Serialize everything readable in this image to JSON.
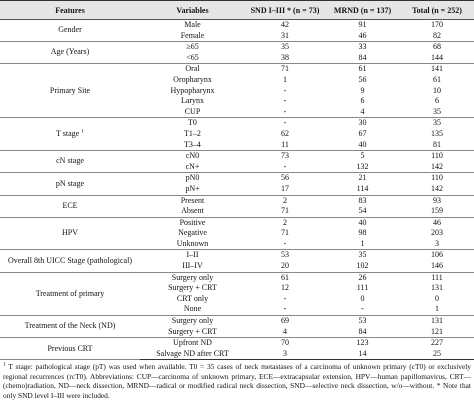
{
  "header": [
    "Features",
    "Variables",
    "SND I–III * (n = 73)",
    "MRND (n = 137)",
    "Total (n = 252)"
  ],
  "groups": [
    {
      "feature": "Gender",
      "rows": [
        [
          "Male",
          "42",
          "91",
          "170"
        ],
        [
          "Female",
          "31",
          "46",
          "82"
        ]
      ]
    },
    {
      "feature": "Age (Years)",
      "rows": [
        [
          "≥65",
          "35",
          "33",
          "68"
        ],
        [
          "<65",
          "38",
          "84",
          "144"
        ]
      ]
    },
    {
      "feature": "Primary Site",
      "rows": [
        [
          "Oral",
          "71",
          "61",
          "141"
        ],
        [
          "Oropharynx",
          "1",
          "56",
          "61"
        ],
        [
          "Hypopharynx",
          "-",
          "9",
          "10"
        ],
        [
          "Larynx",
          "-",
          "6",
          "6"
        ],
        [
          "CUP",
          "-",
          "4",
          "35"
        ]
      ]
    },
    {
      "feature": "T stage",
      "sup": "1",
      "rows": [
        [
          "T0",
          "-",
          "30",
          "35"
        ],
        [
          "T1–2",
          "62",
          "67",
          "135"
        ],
        [
          "T3–4",
          "11",
          "40",
          "81"
        ]
      ]
    },
    {
      "feature": "cN stage",
      "rows": [
        [
          "cN0",
          "73",
          "5",
          "110"
        ],
        [
          "cN+",
          "-",
          "132",
          "142"
        ]
      ]
    },
    {
      "feature": "pN stage",
      "rows": [
        [
          "pN0",
          "56",
          "21",
          "110"
        ],
        [
          "pN+",
          "17",
          "114",
          "142"
        ]
      ]
    },
    {
      "feature": "ECE",
      "rows": [
        [
          "Present",
          "2",
          "83",
          "93"
        ],
        [
          "Absent",
          "71",
          "54",
          "159"
        ]
      ]
    },
    {
      "feature": "HPV",
      "rows": [
        [
          "Positive",
          "2",
          "40",
          "46"
        ],
        [
          "Negative",
          "71",
          "98",
          "203"
        ],
        [
          "Unknown",
          "-",
          "1",
          "3"
        ]
      ]
    },
    {
      "feature": "Overall 8th UICC Stage (pathological)",
      "rows": [
        [
          "I–II",
          "53",
          "35",
          "106"
        ],
        [
          "III–IV",
          "20",
          "102",
          "146"
        ]
      ]
    },
    {
      "feature": "Treatment of primary",
      "rows": [
        [
          "Surgery only",
          "61",
          "26",
          "111"
        ],
        [
          "Surgery + CRT",
          "12",
          "111",
          "131"
        ],
        [
          "CRT only",
          "-",
          "0",
          "0"
        ],
        [
          "None",
          "-",
          "-",
          "1"
        ]
      ]
    },
    {
      "feature": "Treatment of the Neck (ND)",
      "rows": [
        [
          "Surgery only",
          "69",
          "53",
          "131"
        ],
        [
          "Surgery + CRT",
          "4",
          "84",
          "121"
        ]
      ]
    },
    {
      "feature": "Previous CRT",
      "rows": [
        [
          "Upfront ND",
          "70",
          "123",
          "227"
        ],
        [
          "Salvage ND after CRT",
          "3",
          "14",
          "25"
        ]
      ]
    }
  ],
  "footnote": {
    "sup": "1",
    "text": "T stage: pathological stage (pT) was used when available. T0 = 35 cases of neck metastases of a carcinoma of unknown primary (cT0) or exclusively regional recurrences (rcT0). Abbreviations: CUP—carcinoma of unknown primary, ECE—extracapsular extension, HPV—human papillomavirus, CRT—(chemo)radiation, ND—neck dissection, MRND—radical or modified radical neck dissection, SND—selective neck dissection, w/o—without. * Note that only SND level I–III were included."
  }
}
